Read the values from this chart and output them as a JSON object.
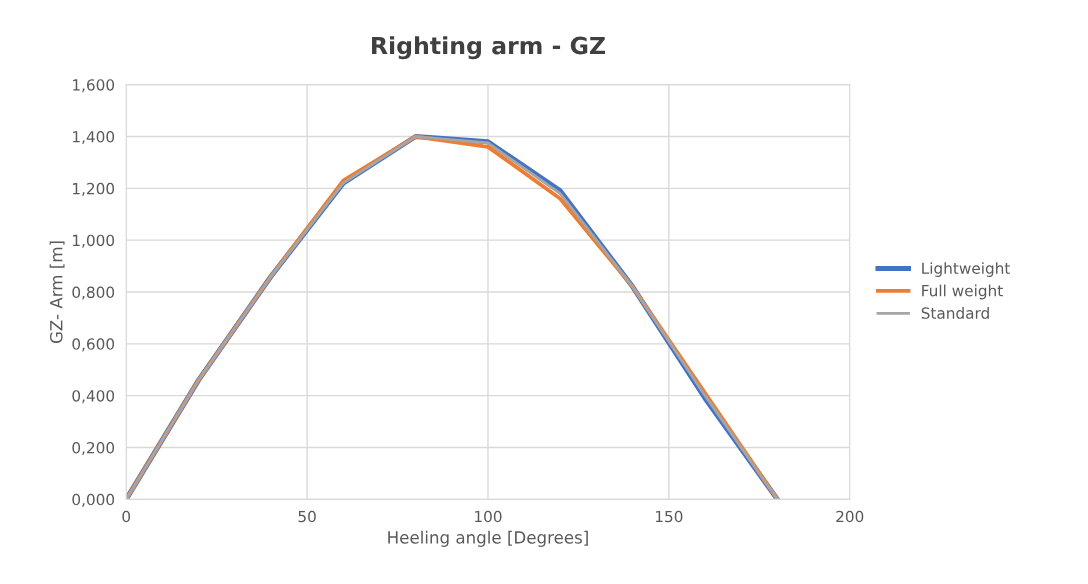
{
  "chart_data": {
    "type": "line",
    "title": "Righting arm - GZ",
    "xlabel": "Heeling angle [Degrees]",
    "ylabel": "GZ- Arm [m]",
    "x": [
      0,
      20,
      40,
      60,
      80,
      100,
      120,
      140,
      160,
      180
    ],
    "series": [
      {
        "name": "Lightweight",
        "color": "#4472c4",
        "values": [
          0,
          0.46,
          0.86,
          1.22,
          1.4,
          1.38,
          1.19,
          0.82,
          0.39,
          0
        ]
      },
      {
        "name": "Full weight",
        "color": "#ed7d31",
        "values": [
          0,
          0.46,
          0.86,
          1.23,
          1.4,
          1.36,
          1.16,
          0.82,
          0.41,
          0
        ]
      },
      {
        "name": "Standard",
        "color": "#a5a5a5",
        "values": [
          0,
          0.46,
          0.86,
          1.22,
          1.4,
          1.375,
          1.18,
          0.82,
          0.4,
          0
        ]
      }
    ],
    "xlim": [
      0,
      200
    ],
    "xticks": [
      0,
      50,
      100,
      150,
      200
    ],
    "ylim": [
      0,
      1.6
    ],
    "yticks": [
      {
        "value": 0,
        "label": "0,000"
      },
      {
        "value": 0.2,
        "label": "0,200"
      },
      {
        "value": 0.4,
        "label": "0,400"
      },
      {
        "value": 0.6,
        "label": "0,600"
      },
      {
        "value": 0.8,
        "label": "0,800"
      },
      {
        "value": 1.0,
        "label": "1,000"
      },
      {
        "value": 1.2,
        "label": "1,200"
      },
      {
        "value": 1.4,
        "label": "1,400"
      },
      {
        "value": 1.6,
        "label": "1,600"
      }
    ],
    "grid": true,
    "legend": "right",
    "marker": "none",
    "line_style": "solid"
  }
}
